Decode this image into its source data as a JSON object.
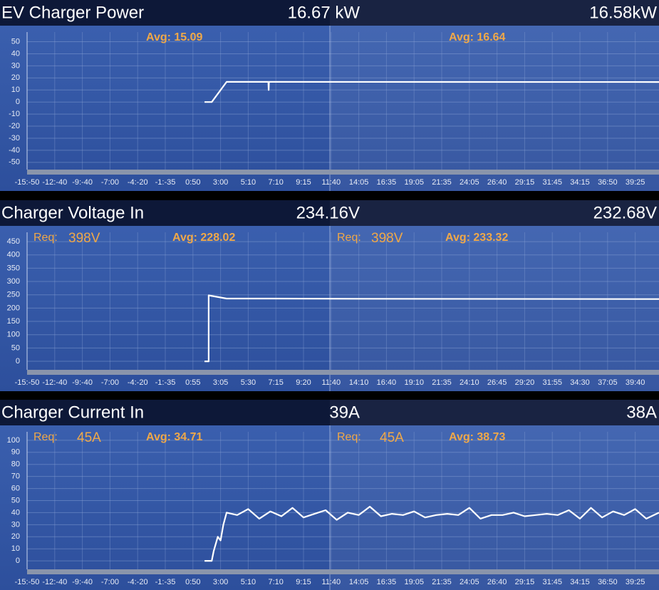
{
  "chart_data": [
    {
      "type": "line",
      "title": "EV Charger Power",
      "readouts": [
        "16.67 kW",
        "16.58kW"
      ],
      "avg_labels": [
        "Avg: 15.09",
        "Avg: 16.64"
      ],
      "xlim": [
        0,
        22.86
      ],
      "ylim": [
        -56,
        58
      ],
      "yticks": [
        -50,
        -40,
        -30,
        -20,
        -10,
        0,
        10,
        20,
        30,
        40,
        50
      ],
      "xticks": [
        {
          "value": 0,
          "label": "-15:-50"
        },
        {
          "value": 1,
          "label": "-12:-40"
        },
        {
          "value": 2,
          "label": "-9:-40"
        },
        {
          "value": 3,
          "label": "-7:00"
        },
        {
          "value": 4,
          "label": "-4:-20"
        },
        {
          "value": 5,
          "label": "-1:-35"
        },
        {
          "value": 6,
          "label": "0:50"
        },
        {
          "value": 7,
          "label": "3:00"
        },
        {
          "value": 8,
          "label": "5:10"
        },
        {
          "value": 9,
          "label": "7:10"
        },
        {
          "value": 10,
          "label": "9:15"
        },
        {
          "value": 11,
          "label": "11:40"
        },
        {
          "value": 12,
          "label": "14:05"
        },
        {
          "value": 13,
          "label": "16:35"
        },
        {
          "value": 14,
          "label": "19:05"
        },
        {
          "value": 15,
          "label": "21:35"
        },
        {
          "value": 16,
          "label": "24:05"
        },
        {
          "value": 17,
          "label": "26:40"
        },
        {
          "value": 18,
          "label": "29:15"
        },
        {
          "value": 19,
          "label": "31:45"
        },
        {
          "value": 20,
          "label": "34:15"
        },
        {
          "value": 21,
          "label": "36:50"
        },
        {
          "value": 22,
          "label": "39:25"
        }
      ],
      "series": [
        {
          "color": "#ffffff",
          "x": [
            6.42,
            6.68,
            7.22,
            8.73,
            8.74,
            8.75,
            22.86
          ],
          "values": [
            0,
            0,
            16.7,
            16.7,
            10,
            16.7,
            16.6
          ]
        }
      ]
    },
    {
      "type": "line",
      "title": "Charger Voltage In",
      "readouts": [
        "234.16V",
        "232.68V"
      ],
      "avg_labels": [
        "Avg: 228.02",
        "Avg: 233.32"
      ],
      "req_labels": [
        "Req:",
        "Req:"
      ],
      "req_values": [
        "398V",
        "398V"
      ],
      "xlim": [
        0,
        22.86
      ],
      "ylim": [
        -32,
        485
      ],
      "yticks": [
        0,
        50,
        100,
        150,
        200,
        250,
        300,
        350,
        400,
        450
      ],
      "xticks": [
        {
          "value": 0,
          "label": "-15:-50"
        },
        {
          "value": 1,
          "label": "-12:-40"
        },
        {
          "value": 2,
          "label": "-9:-40"
        },
        {
          "value": 3,
          "label": "-7:00"
        },
        {
          "value": 4,
          "label": "-4:-20"
        },
        {
          "value": 5,
          "label": "-1:-35"
        },
        {
          "value": 6,
          "label": "0:55"
        },
        {
          "value": 7,
          "label": "3:05"
        },
        {
          "value": 8,
          "label": "5:30"
        },
        {
          "value": 9,
          "label": "7:15"
        },
        {
          "value": 10,
          "label": "9:20"
        },
        {
          "value": 11,
          "label": "11:40"
        },
        {
          "value": 12,
          "label": "14:10"
        },
        {
          "value": 13,
          "label": "16:40"
        },
        {
          "value": 14,
          "label": "19:10"
        },
        {
          "value": 15,
          "label": "21:35"
        },
        {
          "value": 16,
          "label": "24:10"
        },
        {
          "value": 17,
          "label": "26:45"
        },
        {
          "value": 18,
          "label": "29:20"
        },
        {
          "value": 19,
          "label": "31:55"
        },
        {
          "value": 20,
          "label": "34:30"
        },
        {
          "value": 21,
          "label": "37:05"
        },
        {
          "value": 22,
          "label": "39:40"
        }
      ],
      "series": [
        {
          "color": "#ffffff",
          "x": [
            6.42,
            6.57,
            6.57,
            7.22,
            8.5,
            12,
            22.86
          ],
          "values": [
            0,
            0,
            248,
            236,
            236,
            235,
            234
          ]
        }
      ]
    },
    {
      "type": "line",
      "title": "Charger Current In",
      "readouts": [
        "39A",
        "38A"
      ],
      "avg_labels": [
        "Avg: 34.71",
        "Avg: 38.73"
      ],
      "req_labels": [
        "Req:",
        "Req:"
      ],
      "req_values": [
        "45A",
        "45A"
      ],
      "xlim": [
        0,
        22.86
      ],
      "ylim": [
        -7,
        107
      ],
      "yticks": [
        0,
        10,
        20,
        30,
        40,
        50,
        60,
        70,
        80,
        90,
        100
      ],
      "xticks": [
        {
          "value": 0,
          "label": "-15:-50"
        },
        {
          "value": 1,
          "label": "-12:-40"
        },
        {
          "value": 2,
          "label": "-9:-40"
        },
        {
          "value": 3,
          "label": "-7:00"
        },
        {
          "value": 4,
          "label": "-4:-20"
        },
        {
          "value": 5,
          "label": "-1:-35"
        },
        {
          "value": 6,
          "label": "0:50"
        },
        {
          "value": 7,
          "label": "3:00"
        },
        {
          "value": 8,
          "label": "5:10"
        },
        {
          "value": 9,
          "label": "7:10"
        },
        {
          "value": 10,
          "label": "9:15"
        },
        {
          "value": 11,
          "label": "11:40"
        },
        {
          "value": 12,
          "label": "14:05"
        },
        {
          "value": 13,
          "label": "16:35"
        },
        {
          "value": 14,
          "label": "19:05"
        },
        {
          "value": 15,
          "label": "21:35"
        },
        {
          "value": 16,
          "label": "24:05"
        },
        {
          "value": 17,
          "label": "26:40"
        },
        {
          "value": 18,
          "label": "29:15"
        },
        {
          "value": 19,
          "label": "31:45"
        },
        {
          "value": 20,
          "label": "34:15"
        },
        {
          "value": 21,
          "label": "36:50"
        },
        {
          "value": 22,
          "label": "39:25"
        }
      ],
      "series": [
        {
          "color": "#ffffff",
          "x": [
            6.42,
            6.68,
            6.75,
            6.9,
            7.0,
            7.1,
            7.22,
            7.6,
            8.0,
            8.4,
            8.8,
            9.2,
            9.6,
            10.0,
            10.4,
            10.8,
            11.2,
            11.6,
            12.0,
            12.4,
            12.8,
            13.2,
            13.6,
            14.0,
            14.4,
            14.8,
            15.2,
            15.6,
            16.0,
            16.4,
            16.8,
            17.2,
            17.6,
            18.0,
            18.4,
            18.8,
            19.2,
            19.6,
            20.0,
            20.4,
            20.8,
            21.2,
            21.6,
            22.0,
            22.4,
            22.86
          ],
          "values": [
            0,
            0,
            8,
            20,
            17,
            30,
            40,
            38,
            43,
            35,
            41,
            37,
            44,
            36,
            39,
            42,
            34,
            40,
            38,
            45,
            37,
            39,
            38,
            41,
            36,
            38,
            39,
            38,
            44,
            35,
            38,
            38,
            40,
            37,
            38,
            39,
            38,
            42,
            35,
            44,
            36,
            41,
            38,
            43,
            35,
            40
          ]
        }
      ]
    }
  ]
}
